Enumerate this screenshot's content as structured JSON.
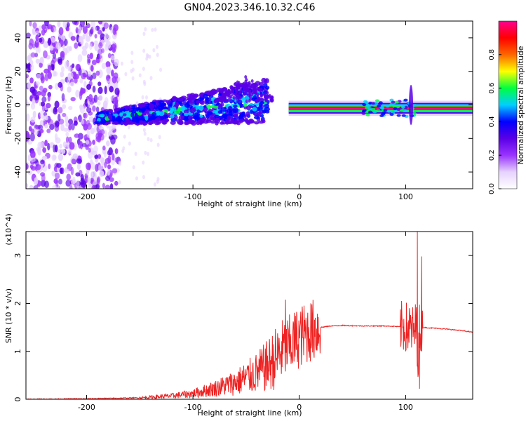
{
  "title": "GN04.2023.346.10.32.C46",
  "chart_data": [
    {
      "type": "heatmap",
      "xlabel": "Height of straight line (km)",
      "ylabel": "Frequency (Hz)",
      "xlim": [
        -257,
        163
      ],
      "ylim": [
        -50,
        50
      ],
      "x_ticks": [
        -200,
        -100,
        0,
        100
      ],
      "y_ticks": [
        -40,
        -20,
        0,
        20,
        40
      ],
      "colorbar": {
        "label": "Normalized spectral amplitude",
        "range": [
          0,
          1
        ],
        "ticks": [
          "0.0",
          "0.2",
          "0.4",
          "0.6",
          "0.8"
        ],
        "colors": [
          "#ffffff",
          "#e6d2ff",
          "#9933ff",
          "#5a00e6",
          "#0000ff",
          "#00cfff",
          "#00ff40",
          "#ffff00",
          "#ff6600",
          "#ff0000",
          "#ff0090"
        ]
      },
      "features": [
        {
          "name": "noise",
          "x_range": [
            -257,
            -170
          ],
          "y_range": [
            -50,
            50
          ],
          "amplitude": 0.15
        },
        {
          "name": "signal",
          "x_range": [
            -190,
            -30
          ],
          "center_y": [
            -8,
            2
          ],
          "amplitude": 0.4
        },
        {
          "name": "tone",
          "x_range": [
            -10,
            163
          ],
          "y": -2,
          "amplitude": 0.95
        },
        {
          "name": "spike",
          "x": 105,
          "y_range": [
            -12,
            12
          ],
          "amplitude": 0.3
        }
      ]
    },
    {
      "type": "line",
      "xlabel": "Height of straight line (km)",
      "ylabel": "SNR (10 * v/v)",
      "y_multiplier": "(x10^4)",
      "xlim": [
        -257,
        163
      ],
      "ylim": [
        0,
        3.5
      ],
      "x_ticks": [
        -200,
        -100,
        0,
        100
      ],
      "y_ticks": [
        0,
        1,
        2,
        3
      ],
      "color": "#ee2222",
      "series": [
        {
          "x": [
            -257,
            -200,
            -150,
            -120,
            -100,
            -80,
            -60,
            -40,
            -30,
            -20,
            -15,
            -10,
            0,
            10,
            20,
            30,
            40,
            60,
            80,
            90,
            100,
            105,
            108,
            110,
            112,
            113,
            115,
            130,
            150,
            163
          ],
          "values": [
            0.0,
            0.01,
            0.03,
            0.07,
            0.12,
            0.22,
            0.35,
            0.55,
            0.7,
            0.9,
            1.05,
            1.1,
            1.3,
            1.42,
            1.5,
            1.53,
            1.54,
            1.53,
            1.53,
            1.52,
            1.5,
            1.45,
            1.4,
            1.55,
            0.8,
            1.5,
            1.5,
            1.48,
            1.44,
            1.4
          ],
          "peaks": [
            {
              "x": -13,
              "y": 2.08
            },
            {
              "x": -20,
              "y": 1.3
            },
            {
              "x": 111,
              "y": 3.5
            },
            {
              "x": 113,
              "y": 0.22
            },
            {
              "x": 115,
              "y": 2.98
            }
          ]
        }
      ]
    }
  ]
}
